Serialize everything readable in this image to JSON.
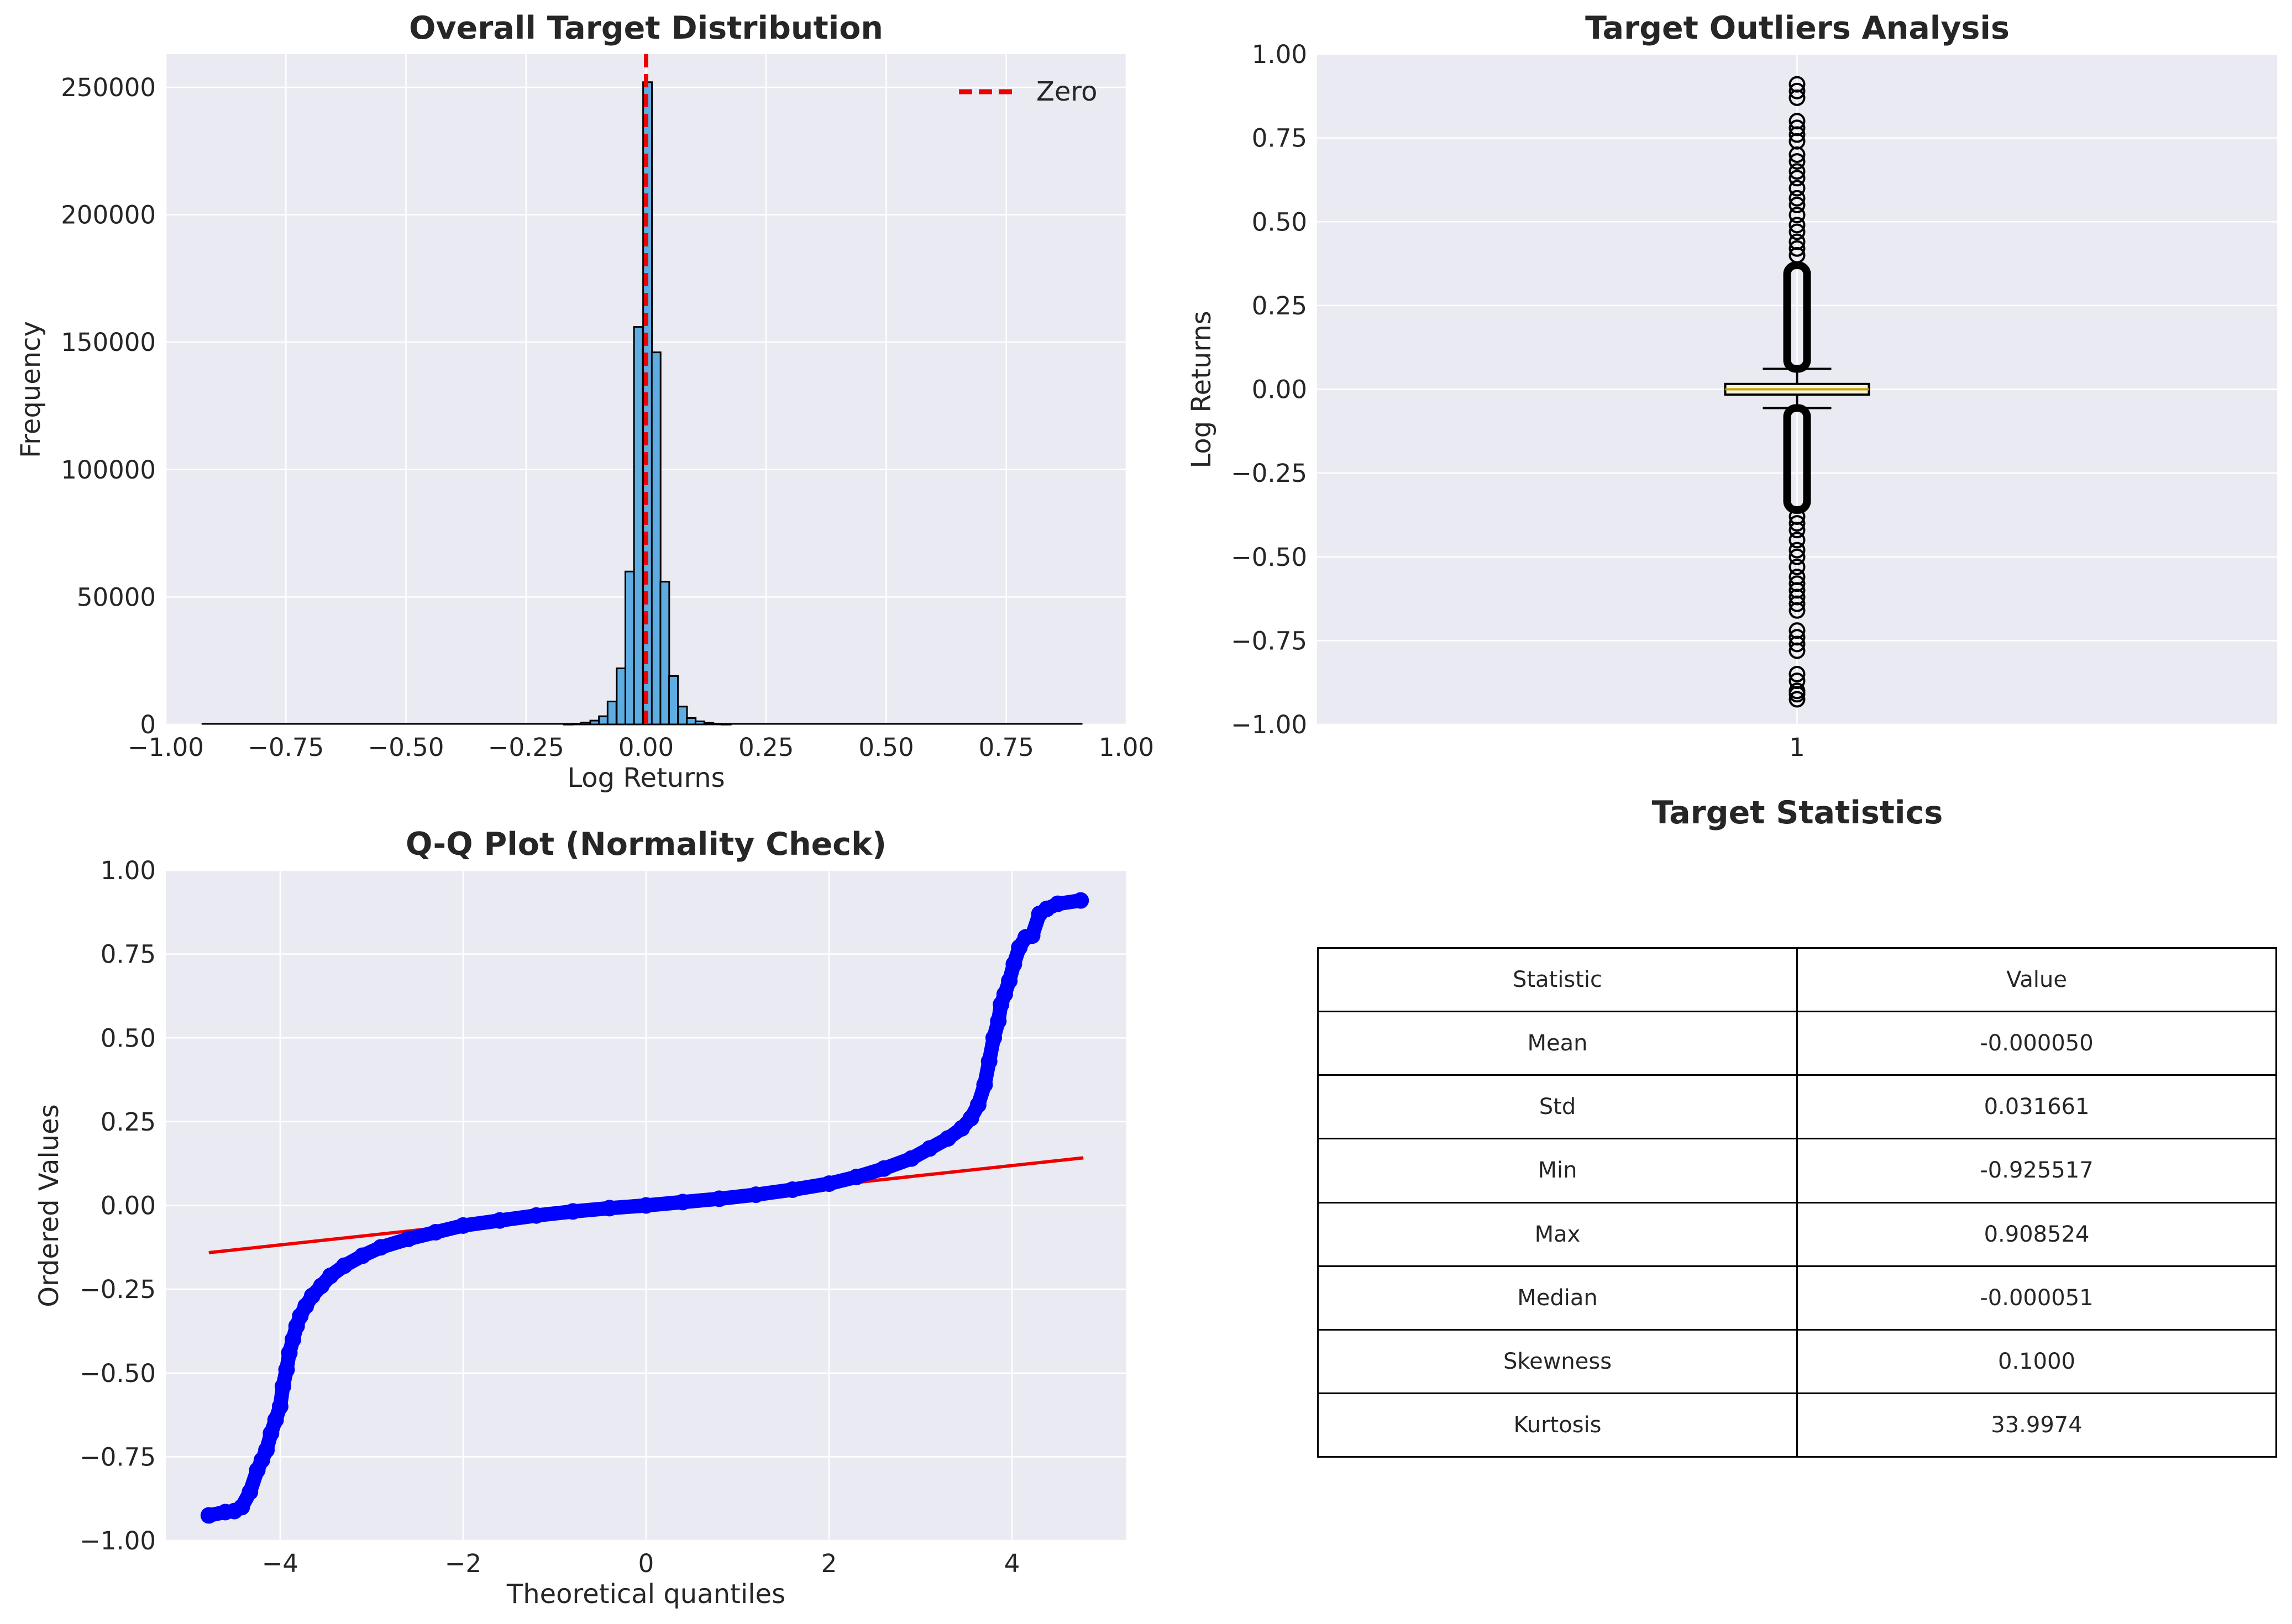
{
  "colors": {
    "axes_background": "#eaeaf2",
    "grid": "#ffffff",
    "histogram_fill": "#5dade2",
    "zero_line": "#ee0000",
    "qq_points": "#0000ff",
    "qq_fit_line": "#ee0000",
    "box_median": "#f5f5dc"
  },
  "chart_data": [
    {
      "type": "bar",
      "subtype": "histogram",
      "title": "Overall Target Distribution",
      "xlabel": "Log Returns",
      "ylabel": "Frequency",
      "xlim": [
        -1.0,
        1.0
      ],
      "ylim": [
        0,
        263000
      ],
      "x_ticks": [
        -1.0,
        -0.75,
        -0.5,
        -0.25,
        0.0,
        0.25,
        0.5,
        0.75,
        1.0
      ],
      "x_tick_labels": [
        "−1.00",
        "−0.75",
        "−0.50",
        "−0.25",
        "0.00",
        "0.25",
        "0.50",
        "0.75",
        "1.00"
      ],
      "y_ticks": [
        0,
        50000,
        100000,
        150000,
        200000,
        250000
      ],
      "y_tick_labels": [
        "0",
        "50000",
        "100000",
        "150000",
        "200000",
        "250000"
      ],
      "grid": true,
      "bin_range": [
        -0.925517,
        0.908524
      ],
      "bins": [
        {
          "x": -0.162,
          "value": 150
        },
        {
          "x": -0.144,
          "value": 300
        },
        {
          "x": -0.126,
          "value": 700
        },
        {
          "x": -0.107,
          "value": 1500
        },
        {
          "x": -0.089,
          "value": 3200
        },
        {
          "x": -0.071,
          "value": 9000
        },
        {
          "x": -0.052,
          "value": 22000
        },
        {
          "x": -0.034,
          "value": 60000
        },
        {
          "x": -0.016,
          "value": 156000
        },
        {
          "x": 0.003,
          "value": 252000
        },
        {
          "x": 0.021,
          "value": 146000
        },
        {
          "x": 0.039,
          "value": 56000
        },
        {
          "x": 0.057,
          "value": 19000
        },
        {
          "x": 0.076,
          "value": 7000
        },
        {
          "x": 0.094,
          "value": 2500
        },
        {
          "x": 0.112,
          "value": 1200
        },
        {
          "x": 0.131,
          "value": 600
        },
        {
          "x": 0.149,
          "value": 300
        },
        {
          "x": 0.167,
          "value": 150
        }
      ],
      "reference_line": {
        "x": 0.0,
        "style": "dashed",
        "label": "Zero"
      },
      "legend": {
        "position": "top-right",
        "entries": [
          "Zero"
        ]
      }
    },
    {
      "type": "box",
      "title": "Target Outliers Analysis",
      "ylabel": "Log Returns",
      "ylim": [
        -1.0,
        1.0
      ],
      "y_ticks": [
        -1.0,
        -0.75,
        -0.5,
        -0.25,
        0.0,
        0.25,
        0.5,
        0.75,
        1.0
      ],
      "y_tick_labels": [
        "−1.00",
        "−0.75",
        "−0.50",
        "−0.25",
        "0.00",
        "0.25",
        "0.50",
        "0.75",
        "1.00"
      ],
      "categories": [
        "1"
      ],
      "grid": true,
      "box": {
        "q1": -0.016,
        "median": 0.0,
        "q3": 0.016,
        "whisker_low": -0.056,
        "whisker_high": 0.061
      },
      "outliers_upper_dense": [
        0.061,
        0.37
      ],
      "outliers_lower_dense": [
        -0.056,
        -0.36
      ],
      "outliers": [
        0.91,
        0.89,
        0.87,
        0.8,
        0.78,
        0.76,
        0.74,
        0.7,
        0.68,
        0.65,
        0.63,
        0.6,
        0.57,
        0.55,
        0.52,
        0.49,
        0.47,
        0.44,
        0.42,
        0.4,
        -0.38,
        -0.4,
        -0.42,
        -0.45,
        -0.48,
        -0.5,
        -0.53,
        -0.56,
        -0.58,
        -0.6,
        -0.62,
        -0.64,
        -0.66,
        -0.72,
        -0.74,
        -0.76,
        -0.78,
        -0.85,
        -0.87,
        -0.9,
        -0.91,
        -0.925
      ]
    },
    {
      "type": "scatter",
      "title": "Q-Q Plot (Normality Check)",
      "xlabel": "Theoretical quantiles",
      "ylabel": "Ordered Values",
      "xlim": [
        -5.25,
        5.25
      ],
      "ylim": [
        -1.0,
        1.0
      ],
      "x_ticks": [
        -4,
        -2,
        0,
        2,
        4
      ],
      "x_tick_labels": [
        "−4",
        "−2",
        "0",
        "2",
        "4"
      ],
      "y_ticks": [
        -1.0,
        -0.75,
        -0.5,
        -0.25,
        0.0,
        0.25,
        0.5,
        0.75,
        1.0
      ],
      "y_tick_labels": [
        "−1.00",
        "−0.75",
        "−0.50",
        "−0.25",
        "0.00",
        "0.25",
        "0.50",
        "0.75",
        "1.00"
      ],
      "grid": true,
      "points": [
        [
          -4.78,
          -0.925
        ],
        [
          -4.6,
          -0.915
        ],
        [
          -4.5,
          -0.912
        ],
        [
          -4.42,
          -0.9
        ],
        [
          -4.33,
          -0.855
        ],
        [
          -4.25,
          -0.79
        ],
        [
          -4.2,
          -0.76
        ],
        [
          -4.15,
          -0.73
        ],
        [
          -4.1,
          -0.68
        ],
        [
          -4.05,
          -0.64
        ],
        [
          -4.0,
          -0.6
        ],
        [
          -3.97,
          -0.54
        ],
        [
          -3.93,
          -0.49
        ],
        [
          -3.9,
          -0.44
        ],
        [
          -3.86,
          -0.4
        ],
        [
          -3.82,
          -0.36
        ],
        [
          -3.78,
          -0.33
        ],
        [
          -3.72,
          -0.3
        ],
        [
          -3.65,
          -0.27
        ],
        [
          -3.55,
          -0.24
        ],
        [
          -3.45,
          -0.21
        ],
        [
          -3.3,
          -0.18
        ],
        [
          -3.1,
          -0.15
        ],
        [
          -2.9,
          -0.125
        ],
        [
          -2.6,
          -0.1
        ],
        [
          -2.3,
          -0.08
        ],
        [
          -2.0,
          -0.06
        ],
        [
          -1.6,
          -0.045
        ],
        [
          -1.2,
          -0.03
        ],
        [
          -0.8,
          -0.018
        ],
        [
          -0.4,
          -0.008
        ],
        [
          0.0,
          0.0
        ],
        [
          0.4,
          0.01
        ],
        [
          0.8,
          0.02
        ],
        [
          1.2,
          0.032
        ],
        [
          1.6,
          0.047
        ],
        [
          2.0,
          0.065
        ],
        [
          2.3,
          0.085
        ],
        [
          2.6,
          0.11
        ],
        [
          2.9,
          0.14
        ],
        [
          3.1,
          0.17
        ],
        [
          3.3,
          0.2
        ],
        [
          3.45,
          0.23
        ],
        [
          3.55,
          0.26
        ],
        [
          3.63,
          0.3
        ],
        [
          3.7,
          0.36
        ],
        [
          3.75,
          0.43
        ],
        [
          3.8,
          0.5
        ],
        [
          3.85,
          0.55
        ],
        [
          3.88,
          0.6
        ],
        [
          3.92,
          0.63
        ],
        [
          3.97,
          0.67
        ],
        [
          4.02,
          0.72
        ],
        [
          4.08,
          0.77
        ],
        [
          4.15,
          0.8
        ],
        [
          4.22,
          0.805
        ],
        [
          4.3,
          0.87
        ],
        [
          4.38,
          0.885
        ],
        [
          4.5,
          0.9
        ],
        [
          4.75,
          0.91
        ]
      ],
      "fit_line": {
        "x": [
          -4.78,
          4.78
        ],
        "y": [
          -0.141,
          0.142
        ]
      }
    }
  ],
  "table": {
    "title": "Target Statistics",
    "headers": [
      "Statistic",
      "Value"
    ],
    "rows": [
      [
        "Mean",
        "-0.000050"
      ],
      [
        "Std",
        "0.031661"
      ],
      [
        "Min",
        "-0.925517"
      ],
      [
        "Max",
        "0.908524"
      ],
      [
        "Median",
        "-0.000051"
      ],
      [
        "Skewness",
        "0.1000"
      ],
      [
        "Kurtosis",
        "33.9974"
      ]
    ]
  }
}
